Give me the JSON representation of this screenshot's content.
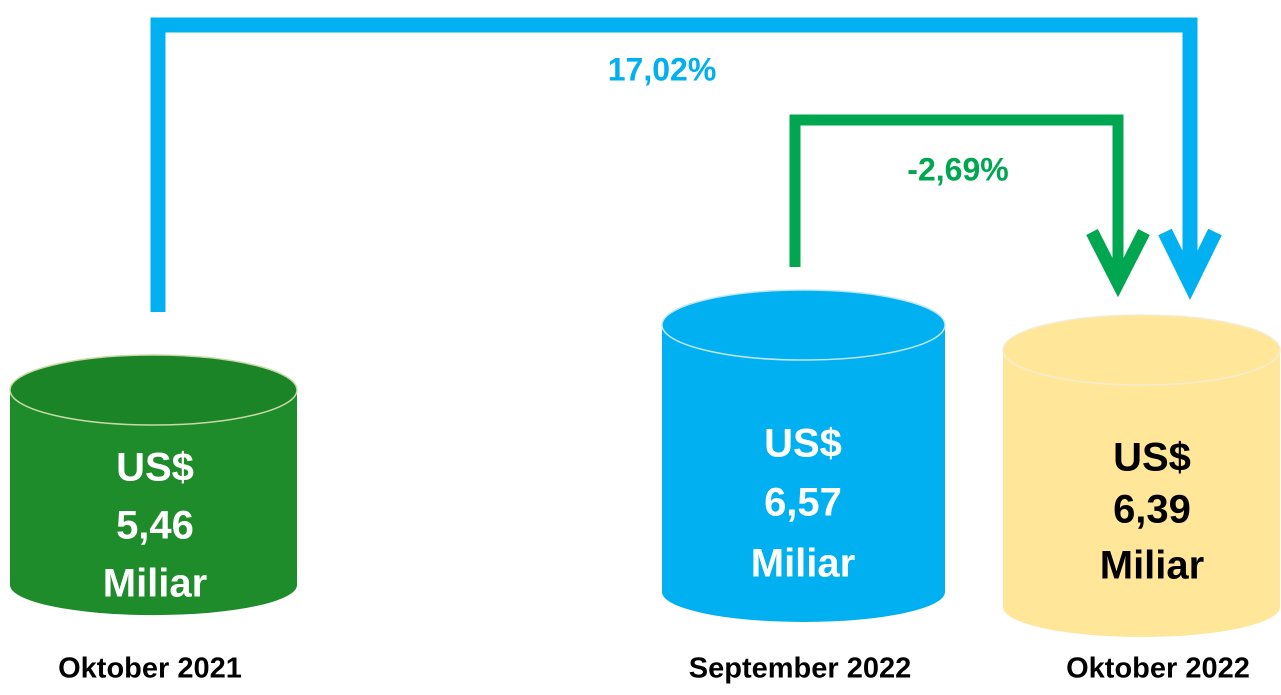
{
  "nodes": [
    {
      "currency": "US$",
      "value": "5,46",
      "unit": "Miliar",
      "label": "Oktober 2021"
    },
    {
      "currency": "US$",
      "value": "6,57",
      "unit": "Miliar",
      "label": "September 2022"
    },
    {
      "currency": "US$",
      "value": "6,39",
      "unit": "Miliar",
      "label": "Oktober 2022"
    }
  ],
  "connectors": [
    {
      "label": "17,02%"
    },
    {
      "label": "-2,69%"
    }
  ]
}
